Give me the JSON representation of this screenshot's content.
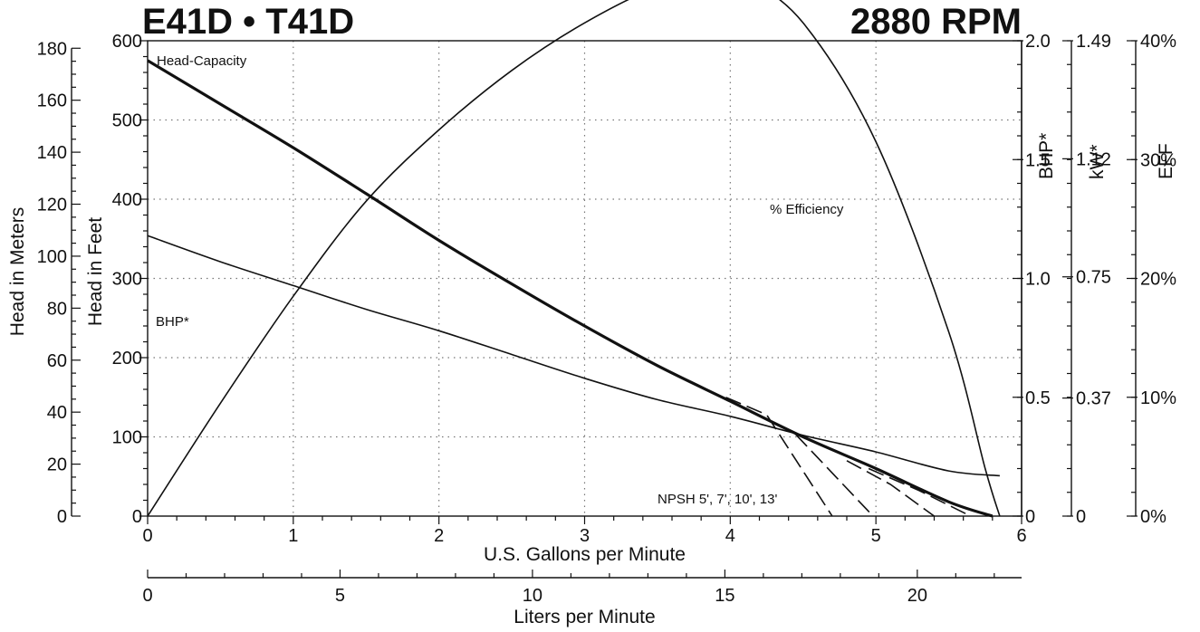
{
  "title": "E41D • T41D",
  "speed": "2880 RPM",
  "chart_data": {
    "type": "line",
    "x_axis": {
      "label": "U.S. Gallons per Minute",
      "range": [
        0,
        6
      ],
      "ticks": [
        0,
        1,
        2,
        3,
        4,
        5,
        6
      ],
      "secondary": {
        "label": "Liters per Minute",
        "range": [
          0,
          22.71
        ],
        "ticks": [
          0,
          5,
          10,
          15,
          20
        ]
      }
    },
    "y_left_feet": {
      "label": "Head in Feet",
      "range": [
        0,
        600
      ],
      "ticks": [
        0,
        100,
        200,
        300,
        400,
        500,
        600
      ]
    },
    "y_left_meters": {
      "label": "Head in Meters",
      "range": [
        0,
        182.88
      ],
      "ticks": [
        0,
        20,
        40,
        60,
        80,
        100,
        120,
        140,
        160,
        180
      ]
    },
    "y_right_bhp": {
      "label": "BHP*",
      "range": [
        0,
        2.0
      ],
      "ticks": [
        {
          "value": 0,
          "label": "0"
        },
        {
          "value": 0.5,
          "label": "0.5"
        },
        {
          "value": 1.0,
          "label": "1.0"
        },
        {
          "value": 1.5,
          "label": "1.5"
        },
        {
          "value": 2.0,
          "label": "2.0"
        }
      ]
    },
    "y_right_kw": {
      "label": "kW*",
      "range": [
        0,
        1.49
      ],
      "ticks": [
        {
          "value": 0,
          "label": "0"
        },
        {
          "value": 0.37,
          "label": "0.37"
        },
        {
          "value": 0.75,
          "label": "0.75"
        },
        {
          "value": 1.12,
          "label": "1.12"
        },
        {
          "value": 1.49,
          "label": "1.49"
        }
      ]
    },
    "y_right_eff": {
      "label": "EFF",
      "range": [
        0,
        40
      ],
      "ticks": [
        {
          "value": 0,
          "label": "0%"
        },
        {
          "value": 10,
          "label": "10%"
        },
        {
          "value": 20,
          "label": "20%"
        },
        {
          "value": 30,
          "label": "30%"
        },
        {
          "value": 40,
          "label": "40%"
        }
      ]
    },
    "grid": true,
    "series": [
      {
        "name": "Head-Capacity",
        "axis": "feet",
        "style": "bold",
        "x": [
          0,
          0.5,
          1,
          1.5,
          2,
          2.5,
          3,
          3.5,
          4,
          4.5,
          5,
          5.5,
          5.8
        ],
        "y": [
          575,
          520,
          465,
          407,
          348,
          293,
          240,
          190,
          145,
          100,
          60,
          18,
          0
        ]
      },
      {
        "name": "BHP*",
        "axis": "bhp",
        "style": "thin",
        "x": [
          0,
          0.5,
          1,
          1.5,
          2,
          2.5,
          3,
          3.5,
          4,
          4.5,
          5,
          5.5,
          5.85
        ],
        "y": [
          1.18,
          1.07,
          0.97,
          0.87,
          0.78,
          0.68,
          0.58,
          0.49,
          0.42,
          0.34,
          0.27,
          0.19,
          0.17
        ]
      },
      {
        "name": "% Efficiency",
        "axis": "eff",
        "style": "thin",
        "x": [
          0,
          0.5,
          1,
          1.5,
          2,
          2.5,
          3,
          3.5,
          3.9,
          4.1,
          4.5,
          5,
          5.5,
          5.75,
          5.85
        ],
        "y": [
          0,
          9.5,
          18.5,
          26.5,
          32.5,
          37.5,
          41.5,
          44.5,
          45.3,
          45.2,
          41.5,
          31.5,
          15.5,
          4,
          0
        ]
      },
      {
        "name": "NPSH 5'",
        "axis": "feet",
        "style": "dashed",
        "x": [
          3.97,
          4.25,
          4.7
        ],
        "y": [
          150,
          128,
          0
        ]
      },
      {
        "name": "NPSH 7'",
        "axis": "feet",
        "style": "dashed",
        "x": [
          4.45,
          4.98
        ],
        "y": [
          103,
          0
        ]
      },
      {
        "name": "NPSH 10'",
        "axis": "feet",
        "style": "dashed",
        "x": [
          4.8,
          5.1,
          5.4
        ],
        "y": [
          70,
          40,
          0
        ]
      },
      {
        "name": "NPSH 13'",
        "axis": "feet",
        "style": "dashed",
        "x": [
          4.95,
          5.3,
          5.65
        ],
        "y": [
          60,
          32,
          0
        ]
      }
    ],
    "annotations": {
      "head_capacity": "Head-Capacity",
      "bhp": "BHP*",
      "efficiency": "% Efficiency",
      "npsh": "NPSH 5', 7', 10', 13'"
    }
  }
}
